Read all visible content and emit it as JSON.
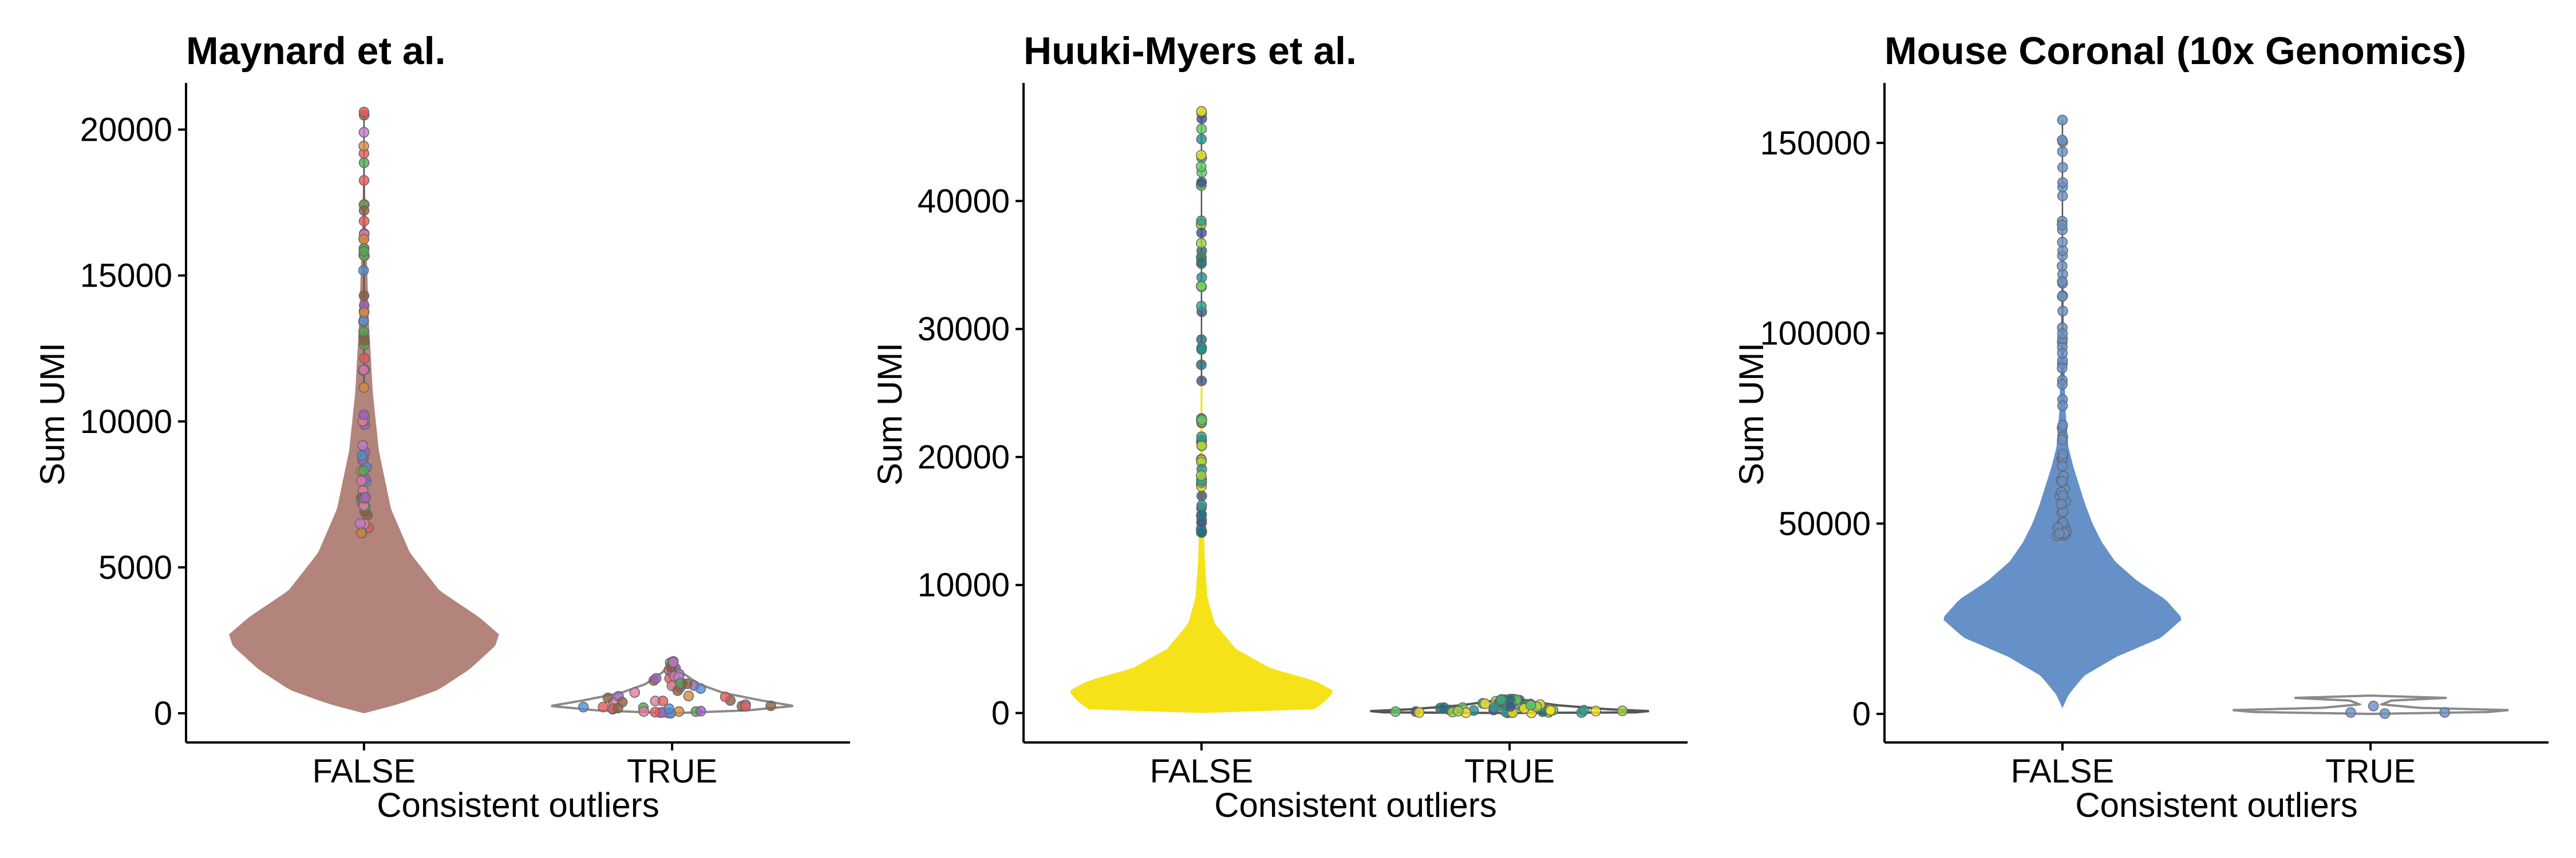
{
  "chart_data": [
    {
      "type": "violin",
      "title": "Maynard et al.",
      "xlabel": "Consistent outliers",
      "ylabel": "Sum UMI",
      "categories": [
        "FALSE",
        "TRUE"
      ],
      "y_ticks": [
        0,
        5000,
        10000,
        15000,
        20000
      ],
      "ylim": [
        -1000,
        21500
      ],
      "colors": {
        "violin_false": "#b3847b",
        "violin_true_outline": "#8a8a8a",
        "points": [
          "#e55a5a",
          "#4c8fd6",
          "#9b62c0",
          "#52a852",
          "#d68a3a",
          "#8c5e3c",
          "#c07bd0",
          "#e07aa0"
        ]
      },
      "distributions": [
        {
          "category": "FALSE",
          "min": 50,
          "median": 2600,
          "max": 20600,
          "profile": [
            [
              0,
              0.0
            ],
            [
              300,
              0.25
            ],
            [
              800,
              0.55
            ],
            [
              1500,
              0.78
            ],
            [
              2300,
              0.97
            ],
            [
              2700,
              1.0
            ],
            [
              3300,
              0.85
            ],
            [
              4200,
              0.56
            ],
            [
              5500,
              0.34
            ],
            [
              7000,
              0.2
            ],
            [
              9000,
              0.11
            ],
            [
              11000,
              0.065
            ],
            [
              13500,
              0.035
            ],
            [
              16500,
              0.015
            ],
            [
              18500,
              0.006
            ],
            [
              20600,
              0.0
            ]
          ]
        },
        {
          "category": "TRUE",
          "min": 0,
          "median": 250,
          "max": 1800,
          "profile": [
            [
              0,
              0.0
            ],
            [
              100,
              0.62
            ],
            [
              250,
              1.0
            ],
            [
              450,
              0.72
            ],
            [
              700,
              0.42
            ],
            [
              1000,
              0.22
            ],
            [
              1400,
              0.08
            ],
            [
              1800,
              0.0
            ]
          ]
        }
      ]
    },
    {
      "type": "violin",
      "title": "Huuki-Myers et al.",
      "xlabel": "Consistent outliers",
      "ylabel": "Sum UMI",
      "categories": [
        "FALSE",
        "TRUE"
      ],
      "y_ticks": [
        0,
        10000,
        20000,
        30000,
        40000
      ],
      "ylim": [
        -2300,
        49000
      ],
      "colors": {
        "violin_false": "#f6e219",
        "points": [
          "#f6e219",
          "#2a9d8f",
          "#21908c",
          "#1f6b7a",
          "#a0d23a",
          "#3b528b",
          "#5dc863"
        ]
      },
      "distributions": [
        {
          "category": "FALSE",
          "min": 0,
          "median": 2000,
          "max": 47000,
          "profile": [
            [
              0,
              0.0
            ],
            [
              100,
              0.82
            ],
            [
              800,
              0.92
            ],
            [
              1700,
              1.0
            ],
            [
              2500,
              0.86
            ],
            [
              3500,
              0.52
            ],
            [
              5000,
              0.26
            ],
            [
              7000,
              0.1
            ],
            [
              9000,
              0.045
            ],
            [
              12000,
              0.025
            ],
            [
              16000,
              0.014
            ],
            [
              22000,
              0.008
            ],
            [
              30000,
              0.004
            ],
            [
              40000,
              0.002
            ],
            [
              47000,
              0.0
            ]
          ]
        },
        {
          "category": "TRUE",
          "min": 0,
          "median": 150,
          "max": 1200,
          "profile": [
            [
              0,
              0.0
            ],
            [
              50,
              0.9
            ],
            [
              150,
              1.0
            ],
            [
              300,
              0.7
            ],
            [
              600,
              0.35
            ],
            [
              900,
              0.15
            ],
            [
              1200,
              0.0
            ]
          ]
        }
      ]
    },
    {
      "type": "violin",
      "title": "Mouse Coronal (10x Genomics)",
      "xlabel": "Consistent outliers",
      "ylabel": "Sum UMI",
      "categories": [
        "FALSE",
        "TRUE"
      ],
      "y_ticks": [
        0,
        50000,
        100000,
        150000
      ],
      "ylim": [
        -7500,
        165000
      ],
      "colors": {
        "violin_false": "#6690c8",
        "violin_true_outline": "#8a8a8a",
        "points": [
          "#6690c8"
        ]
      },
      "distributions": [
        {
          "category": "FALSE",
          "min": 1500,
          "median": 25000,
          "max": 156000,
          "profile": [
            [
              1500,
              0.0
            ],
            [
              5000,
              0.05
            ],
            [
              10000,
              0.18
            ],
            [
              15000,
              0.45
            ],
            [
              20000,
              0.82
            ],
            [
              25000,
              1.0
            ],
            [
              30000,
              0.86
            ],
            [
              35000,
              0.62
            ],
            [
              40000,
              0.44
            ],
            [
              45000,
              0.33
            ],
            [
              50000,
              0.25
            ],
            [
              55000,
              0.19
            ],
            [
              60000,
              0.14
            ],
            [
              65000,
              0.09
            ],
            [
              70000,
              0.05
            ],
            [
              80000,
              0.025
            ],
            [
              95000,
              0.014
            ],
            [
              120000,
              0.006
            ],
            [
              156000,
              0.0
            ]
          ]
        },
        {
          "category": "TRUE",
          "min": 0,
          "median": 1000,
          "max": 4800,
          "profile": [
            [
              0,
              0.0
            ],
            [
              500,
              0.85
            ],
            [
              1000,
              1.0
            ],
            [
              1600,
              0.35
            ],
            [
              2500,
              0.08
            ],
            [
              3500,
              0.15
            ],
            [
              4200,
              0.55
            ],
            [
              4800,
              0.0
            ]
          ]
        }
      ]
    }
  ]
}
